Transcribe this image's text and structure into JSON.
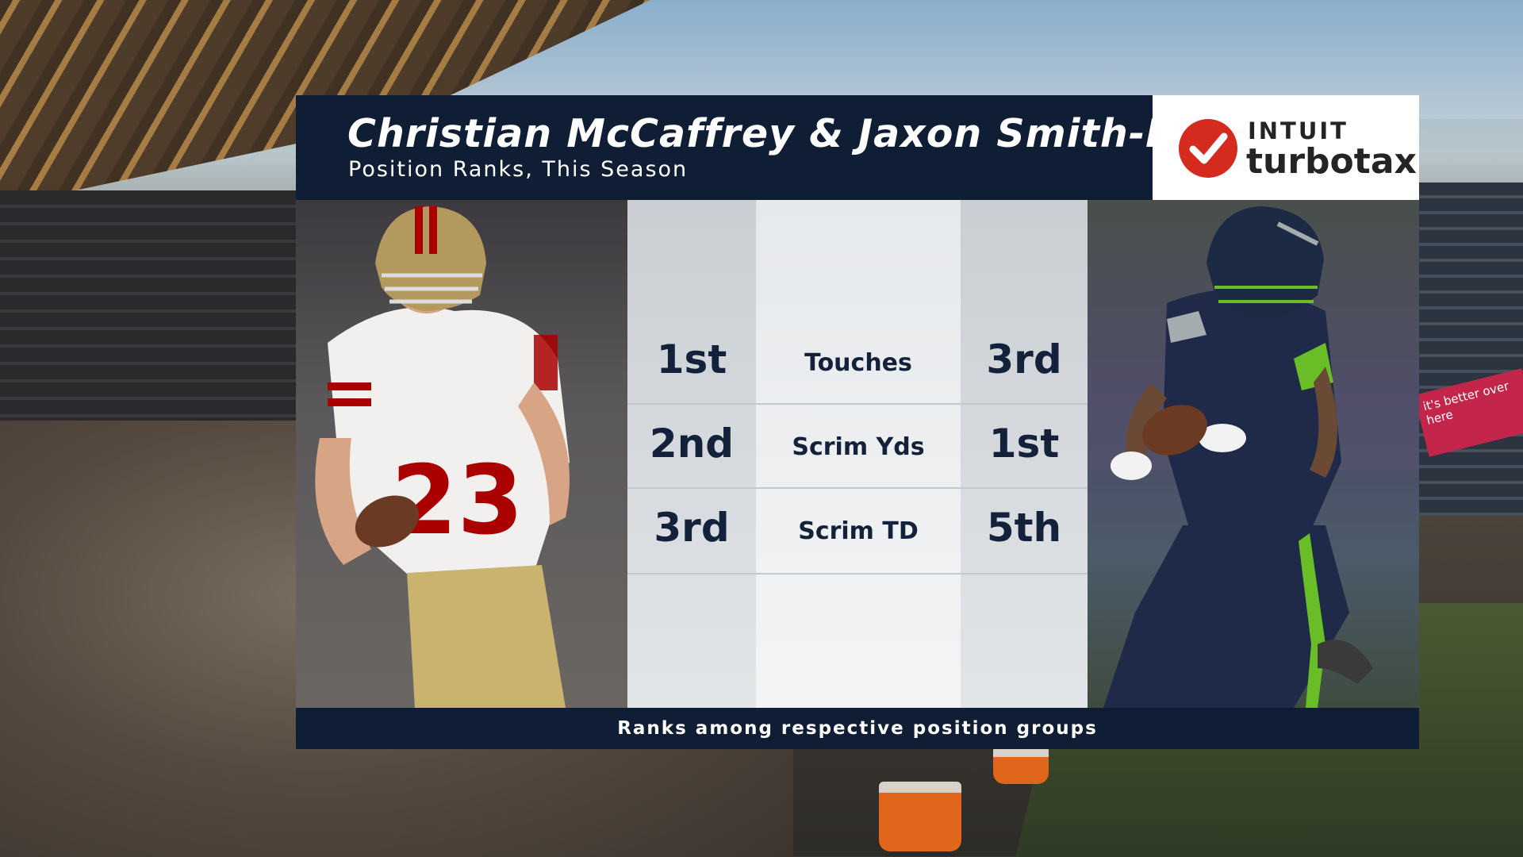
{
  "header": {
    "title": "Christian McCaffrey & Jaxon Smith-Njigba",
    "subtitle": "Position Ranks, This Season"
  },
  "sponsor": {
    "top": "INTUIT",
    "bottom": "turbotax"
  },
  "rows": [
    {
      "left_rank": "1st",
      "category": "Touches",
      "right_rank": "3rd"
    },
    {
      "left_rank": "2nd",
      "category": "Scrim Yds",
      "right_rank": "1st"
    },
    {
      "left_rank": "3rd",
      "category": "Scrim TD",
      "right_rank": "5th"
    }
  ],
  "footer": {
    "note": "Ranks among respective position groups"
  },
  "background": {
    "ad_text": "it's better over here"
  },
  "colors": {
    "navy": "#0f1e35",
    "niners_red": "#aa0000",
    "niners_gold": "#b3995d",
    "seahawks_navy": "#002244",
    "seahawks_green": "#69be28",
    "turbotax_red": "#d52b1e"
  }
}
